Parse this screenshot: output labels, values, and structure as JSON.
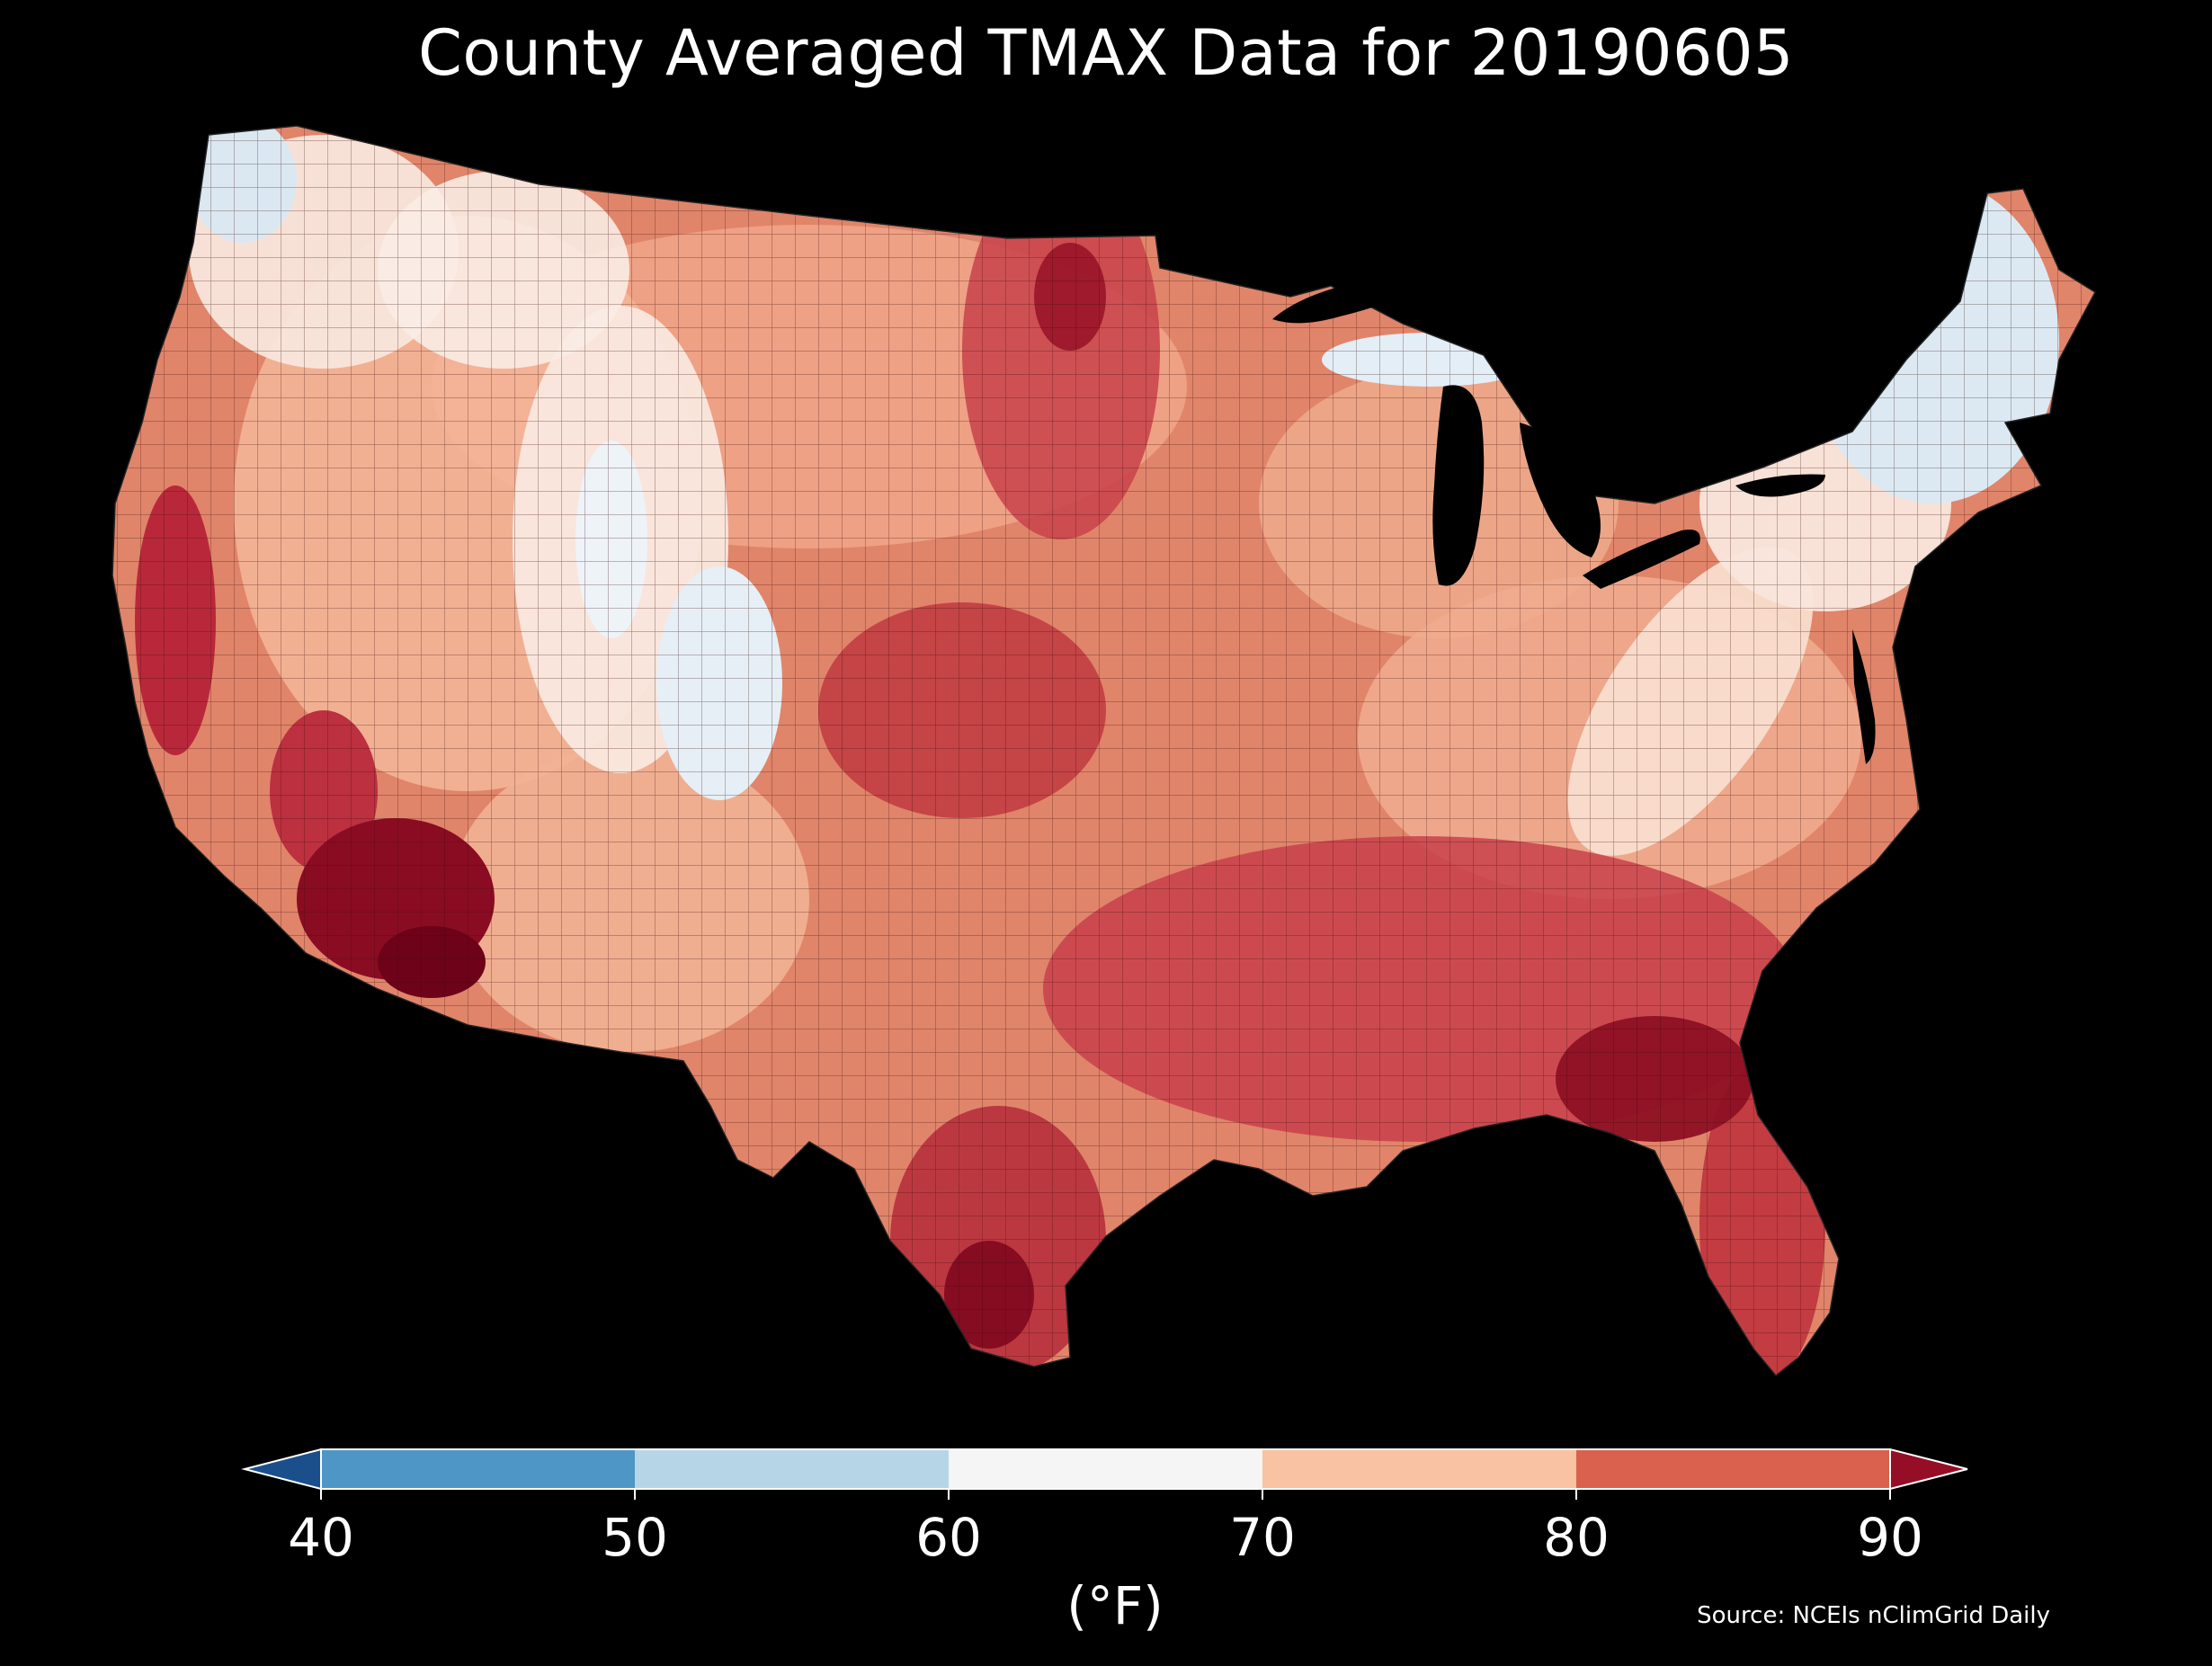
{
  "title": "County Averaged TMAX Data for 20190605",
  "colorbar": {
    "unit_label": "(°F)",
    "ticks": [
      "40",
      "50",
      "60",
      "70",
      "80",
      "90"
    ],
    "bins": [
      {
        "range": "< 40",
        "color": "#1a4f8c"
      },
      {
        "range": "40-50",
        "color": "#4d96c6"
      },
      {
        "range": "50-60",
        "color": "#b6d6e8"
      },
      {
        "range": "60-70",
        "color": "#f5f5f5"
      },
      {
        "range": "70-80",
        "color": "#f8c2a3"
      },
      {
        "range": "80-90",
        "color": "#d9614d"
      },
      {
        "range": "> 90",
        "color": "#960e26"
      }
    ]
  },
  "source": "Source: NCEIs nClimGrid Daily",
  "colors": {
    "background": "#000000",
    "land_base": "#e0856a",
    "cool": "#dfe9f2",
    "mild": "#f9e8de",
    "warm": "#f0a688",
    "hot": "#c3393a",
    "very_hot": "#8a0c22"
  }
}
